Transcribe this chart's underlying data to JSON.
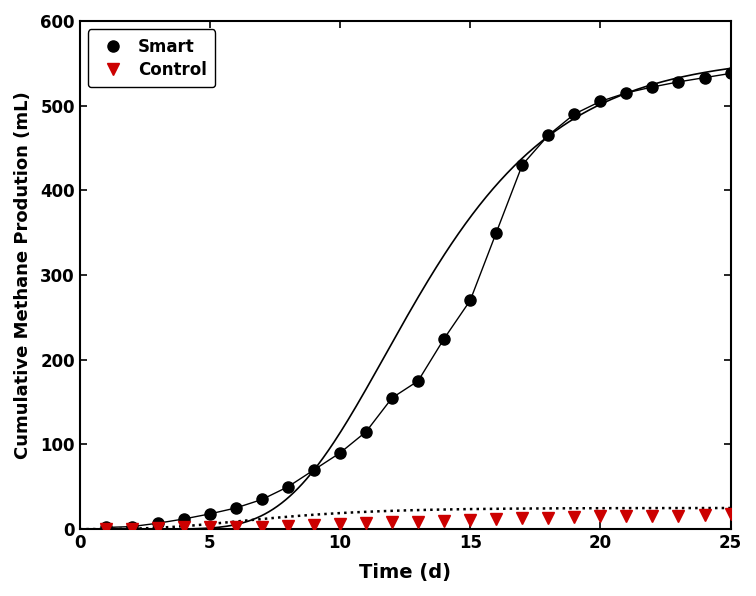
{
  "smart_x": [
    1,
    2,
    3,
    4,
    5,
    6,
    7,
    8,
    9,
    10,
    11,
    12,
    13,
    14,
    15,
    16,
    17,
    18,
    19,
    20,
    21,
    22,
    23,
    24,
    25
  ],
  "smart_y": [
    2,
    3,
    7,
    12,
    18,
    25,
    35,
    50,
    70,
    90,
    115,
    155,
    175,
    225,
    270,
    350,
    430,
    465,
    490,
    505,
    515,
    522,
    528,
    533,
    538
  ],
  "control_x": [
    1,
    2,
    3,
    4,
    5,
    6,
    7,
    8,
    9,
    10,
    11,
    12,
    13,
    14,
    15,
    16,
    17,
    18,
    19,
    20,
    21,
    22,
    23,
    24,
    25
  ],
  "control_y": [
    0,
    0,
    1,
    2,
    2,
    2,
    3,
    4,
    5,
    6,
    7,
    8,
    9,
    10,
    11,
    12,
    13,
    13,
    14,
    15,
    15,
    16,
    16,
    17,
    18
  ],
  "xlabel": "Time (d)",
  "ylabel": "Cumulative Methane Prodution (mL)",
  "xlim": [
    0,
    25
  ],
  "ylim": [
    0,
    600
  ],
  "xticks": [
    0,
    5,
    10,
    15,
    20,
    25
  ],
  "yticks": [
    0,
    100,
    200,
    300,
    400,
    500,
    600
  ],
  "smart_color": "#000000",
  "control_color": "#cc0000",
  "fit_color": "#000000",
  "background_color": "#ffffff",
  "legend_smart": "Smart",
  "legend_control": "Control"
}
